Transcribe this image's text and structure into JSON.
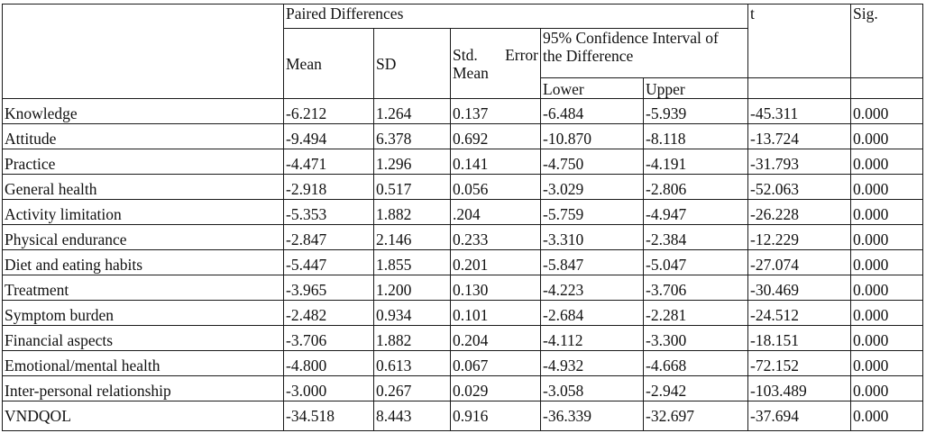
{
  "header": {
    "paired_differences": "Paired Differences",
    "t": "t",
    "sig": "Sig.",
    "mean": "Mean",
    "sd": "SD",
    "std_error_mean_word1": "Std.",
    "std_error_mean_word2": "Error",
    "std_error_mean_word3": "Mean",
    "ci_line1": "95% Confidence Interval of",
    "ci_line2": "the Difference",
    "lower": "Lower",
    "upper": "Upper"
  },
  "rows": [
    {
      "label": "Knowledge",
      "mean": "-6.212",
      "sd": "1.264",
      "se": "0.137",
      "lower": "-6.484",
      "upper": "-5.939",
      "t": "-45.311",
      "sig": "0.000"
    },
    {
      "label": "Attitude",
      "mean": "-9.494",
      "sd": "6.378",
      "se": "0.692",
      "lower": "-10.870",
      "upper": "-8.118",
      "t": "-13.724",
      "sig": "0.000"
    },
    {
      "label": "Practice",
      "mean": "-4.471",
      "sd": "1.296",
      "se": "0.141",
      "lower": "-4.750",
      "upper": "-4.191",
      "t": "-31.793",
      "sig": "0.000"
    },
    {
      "label": "General health",
      "mean": "-2.918",
      "sd": "0.517",
      "se": "0.056",
      "lower": "-3.029",
      "upper": "-2.806",
      "t": "-52.063",
      "sig": "0.000"
    },
    {
      "label": "Activity limitation",
      "mean": "-5.353",
      "sd": "1.882",
      "se": ".204",
      "lower": "-5.759",
      "upper": "-4.947",
      "t": "-26.228",
      "sig": "0.000"
    },
    {
      "label": "Physical endurance",
      "mean": "-2.847",
      "sd": "2.146",
      "se": "0.233",
      "lower": "-3.310",
      "upper": "-2.384",
      "t": "-12.229",
      "sig": "0.000"
    },
    {
      "label": "Diet and eating habits",
      "mean": "-5.447",
      "sd": "1.855",
      "se": "0.201",
      "lower": "-5.847",
      "upper": "-5.047",
      "t": "-27.074",
      "sig": "0.000"
    },
    {
      "label": "Treatment",
      "mean": "-3.965",
      "sd": "1.200",
      "se": "0.130",
      "lower": "-4.223",
      "upper": "-3.706",
      "t": "-30.469",
      "sig": "0.000"
    },
    {
      "label": "Symptom burden",
      "mean": "-2.482",
      "sd": "0.934",
      "se": "0.101",
      "lower": "-2.684",
      "upper": "-2.281",
      "t": "-24.512",
      "sig": "0.000"
    },
    {
      "label": "Financial aspects",
      "mean": "-3.706",
      "sd": "1.882",
      "se": "0.204",
      "lower": "-4.112",
      "upper": "-3.300",
      "t": "-18.151",
      "sig": "0.000"
    },
    {
      "label": "Emotional/mental health",
      "mean": "-4.800",
      "sd": "0.613",
      "se": "0.067",
      "lower": "-4.932",
      "upper": "-4.668",
      "t": "-72.152",
      "sig": "0.000"
    },
    {
      "label": "Inter-personal relationship",
      "mean": "-3.000",
      "sd": "0.267",
      "se": "0.029",
      "lower": "-3.058",
      "upper": "-2.942",
      "t": "-103.489",
      "sig": "0.000"
    },
    {
      "label": "VNDQOL",
      "mean": "-34.518",
      "sd": "8.443",
      "se": "0.916",
      "lower": "-36.339",
      "upper": "-32.697",
      "t": "-37.694",
      "sig": "0.000"
    }
  ]
}
